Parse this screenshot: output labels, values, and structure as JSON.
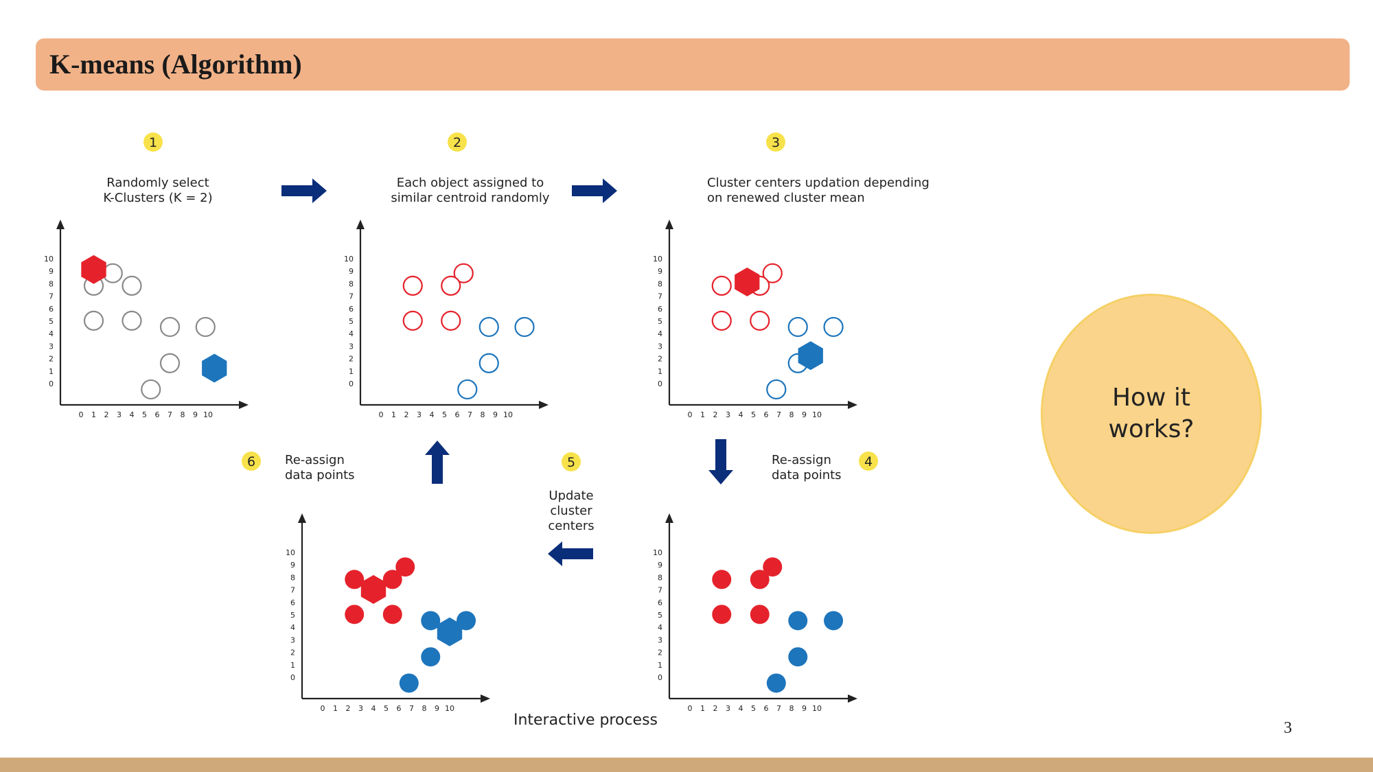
{
  "slide": {
    "title": "K-means (Algorithm)",
    "page_number": "3",
    "callout": "How it works?"
  },
  "diagram": {
    "caption": "Interactive process",
    "steps": [
      {
        "number": "1",
        "label": [
          "Randomly select",
          "K-Clusters (K = 2)"
        ]
      },
      {
        "number": "2",
        "label": [
          "Each object assigned to",
          "similar centroid randomly"
        ]
      },
      {
        "number": "3",
        "label": [
          "Cluster centers updation depending",
          "on renewed cluster mean"
        ]
      },
      {
        "number": "4",
        "label": [
          "Re-assign",
          "data points"
        ]
      },
      {
        "number": "5",
        "label": [
          "Update",
          "cluster",
          "centers"
        ]
      },
      {
        "number": "6",
        "label": [
          "Re-assign",
          "data points"
        ]
      }
    ],
    "axis_ticks": {
      "x": [
        "0",
        "1",
        "2",
        "3",
        "4",
        "5",
        "6",
        "7",
        "8",
        "9",
        "10"
      ],
      "y": [
        "0",
        "1",
        "2",
        "3",
        "4",
        "5",
        "6",
        "7",
        "8",
        "9",
        "10"
      ]
    },
    "colors": {
      "red": "#e5222b",
      "blue": "#1d75bc",
      "gray": "#8a8a8a",
      "arrow": "#0b2e7a",
      "badge": "#f7e24b"
    },
    "plots": [
      {
        "points": [
          {
            "x": 2.5,
            "y": 9,
            "c": "gray"
          },
          {
            "x": 1,
            "y": 8,
            "c": "gray"
          },
          {
            "x": 4,
            "y": 8,
            "c": "gray"
          },
          {
            "x": 1,
            "y": 5.2,
            "c": "gray"
          },
          {
            "x": 4,
            "y": 5.2,
            "c": "gray"
          },
          {
            "x": 7,
            "y": 4.7,
            "c": "gray"
          },
          {
            "x": 9.8,
            "y": 4.7,
            "c": "gray"
          },
          {
            "x": 7,
            "y": 1.8,
            "c": "gray"
          },
          {
            "x": 5.5,
            "y": -0.3,
            "c": "gray"
          }
        ],
        "centroids": [
          {
            "x": 1,
            "y": 9.3,
            "c": "red"
          },
          {
            "x": 10.5,
            "y": 1.4,
            "c": "blue"
          }
        ]
      },
      {
        "points": [
          {
            "x": 6.5,
            "y": 9,
            "c": "red"
          },
          {
            "x": 2.5,
            "y": 8,
            "c": "red"
          },
          {
            "x": 5.5,
            "y": 8,
            "c": "red"
          },
          {
            "x": 2.5,
            "y": 5.2,
            "c": "red"
          },
          {
            "x": 5.5,
            "y": 5.2,
            "c": "red"
          },
          {
            "x": 8.5,
            "y": 4.7,
            "c": "blue"
          },
          {
            "x": 11.3,
            "y": 4.7,
            "c": "blue"
          },
          {
            "x": 8.5,
            "y": 1.8,
            "c": "blue"
          },
          {
            "x": 6.8,
            "y": -0.3,
            "c": "blue"
          }
        ],
        "centroids": []
      },
      {
        "points": [
          {
            "x": 6.5,
            "y": 9,
            "c": "red"
          },
          {
            "x": 2.5,
            "y": 8,
            "c": "red"
          },
          {
            "x": 5.5,
            "y": 8,
            "c": "red"
          },
          {
            "x": 2.5,
            "y": 5.2,
            "c": "red"
          },
          {
            "x": 5.5,
            "y": 5.2,
            "c": "red"
          },
          {
            "x": 8.5,
            "y": 4.7,
            "c": "blue"
          },
          {
            "x": 11.3,
            "y": 4.7,
            "c": "blue"
          },
          {
            "x": 8.5,
            "y": 1.8,
            "c": "blue"
          },
          {
            "x": 6.8,
            "y": -0.3,
            "c": "blue"
          }
        ],
        "centroids": [
          {
            "x": 4.5,
            "y": 8.3,
            "c": "red"
          },
          {
            "x": 9.5,
            "y": 2.4,
            "c": "blue"
          }
        ]
      },
      {
        "points": [
          {
            "x": 6.5,
            "y": 9,
            "c": "red",
            "filled": true
          },
          {
            "x": 2.5,
            "y": 8,
            "c": "red",
            "filled": true
          },
          {
            "x": 5.5,
            "y": 8,
            "c": "red",
            "filled": true
          },
          {
            "x": 2.5,
            "y": 5.2,
            "c": "red",
            "filled": true
          },
          {
            "x": 5.5,
            "y": 5.2,
            "c": "red",
            "filled": true
          },
          {
            "x": 8.5,
            "y": 4.7,
            "c": "blue",
            "filled": true
          },
          {
            "x": 11.3,
            "y": 4.7,
            "c": "blue",
            "filled": true
          },
          {
            "x": 8.5,
            "y": 1.8,
            "c": "blue",
            "filled": true
          },
          {
            "x": 6.8,
            "y": -0.3,
            "c": "blue",
            "filled": true
          }
        ],
        "centroids": []
      },
      {
        "points": [
          {
            "x": 6.5,
            "y": 9,
            "c": "red",
            "filled": true
          },
          {
            "x": 2.5,
            "y": 8,
            "c": "red",
            "filled": true
          },
          {
            "x": 5.5,
            "y": 8,
            "c": "red",
            "filled": true
          },
          {
            "x": 2.5,
            "y": 5.2,
            "c": "red",
            "filled": true
          },
          {
            "x": 5.5,
            "y": 5.2,
            "c": "red",
            "filled": true
          },
          {
            "x": 8.5,
            "y": 4.7,
            "c": "blue",
            "filled": true
          },
          {
            "x": 11.3,
            "y": 4.7,
            "c": "blue",
            "filled": true
          },
          {
            "x": 8.5,
            "y": 1.8,
            "c": "blue",
            "filled": true
          },
          {
            "x": 6.8,
            "y": -0.3,
            "c": "blue",
            "filled": true
          }
        ],
        "centroids": [
          {
            "x": 4,
            "y": 7.2,
            "c": "red"
          },
          {
            "x": 10,
            "y": 3.8,
            "c": "blue"
          }
        ]
      }
    ]
  }
}
